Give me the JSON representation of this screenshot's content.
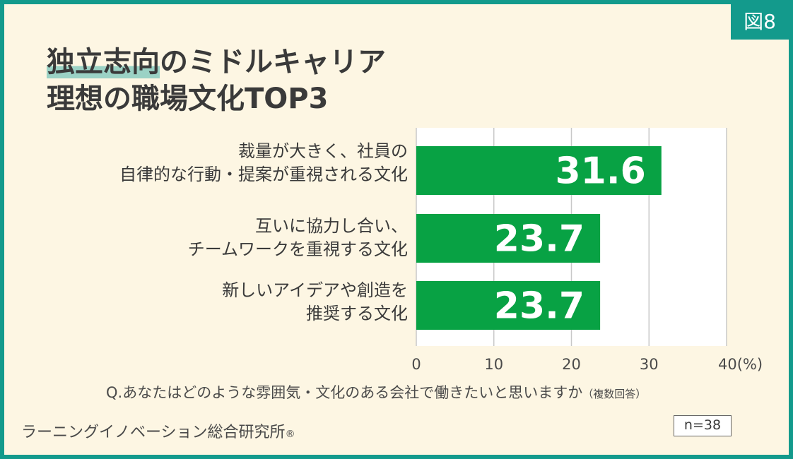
{
  "figure_badge": "図8",
  "title": {
    "line1_highlight": "独立志向",
    "line1_rest": "のミドルキャリア",
    "line2": "理想の職場文化TOP3"
  },
  "question": {
    "text": "Q.あなたはどのような雰囲気・文化のある会社で働きたいと思いますか",
    "note": "（複数回答）"
  },
  "source": {
    "name": "ラーニングイノベーション総合研究所",
    "mark": "®"
  },
  "sample_size": "n=38",
  "colors": {
    "bar": "#08a244",
    "frame": "#139a8c",
    "background": "#fdf6e3",
    "plot_background": "#ffffff",
    "grid": "#c8c8c8",
    "highlight": "#9bd2c5"
  },
  "chart_data": {
    "type": "bar",
    "orientation": "horizontal",
    "categories": [
      [
        "裁量が大きく、社員の",
        "自律的な行動・提案が重視される文化"
      ],
      [
        "互いに協力し合い、",
        "チームワークを重視する文化"
      ],
      [
        "新しいアイデアや創造を",
        "推奨する文化"
      ]
    ],
    "values": [
      31.6,
      23.7,
      23.7
    ],
    "value_labels": [
      "31.6",
      "23.7",
      "23.7"
    ],
    "xlim": [
      0,
      40
    ],
    "xticks": [
      0,
      10,
      20,
      30,
      40
    ],
    "xtick_labels": [
      "0",
      "10",
      "20",
      "30",
      "40(%)"
    ],
    "grid": true
  }
}
